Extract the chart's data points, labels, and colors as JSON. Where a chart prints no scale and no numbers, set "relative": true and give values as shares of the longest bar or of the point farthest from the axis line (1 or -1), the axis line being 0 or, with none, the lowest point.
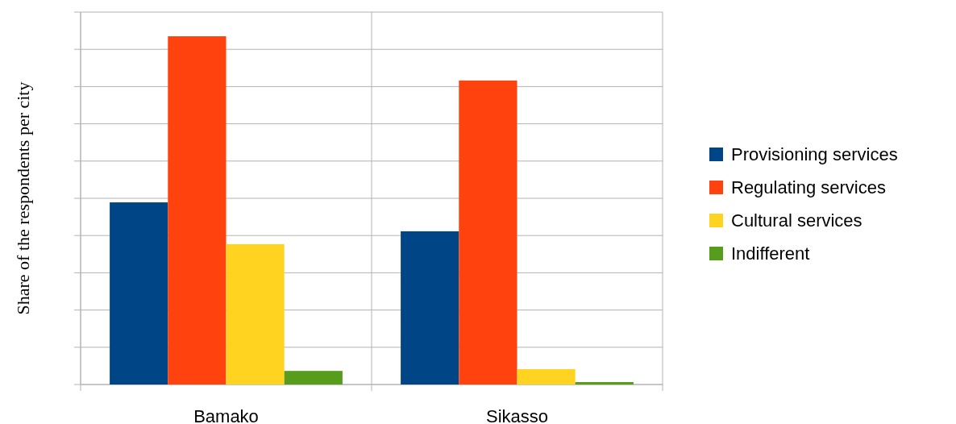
{
  "chart_data": {
    "type": "bar",
    "ylabel": "Share of the respondents per city",
    "categories": [
      "Bamako",
      "Sikasso"
    ],
    "relative": true,
    "grid": true,
    "legend": "right",
    "series": [
      {
        "name": "Provisioning services",
        "color": "#004586",
        "values": [
          0.523,
          0.44
        ]
      },
      {
        "name": "Regulating services",
        "color": "#ff420e",
        "values": [
          1,
          0.873
        ]
      },
      {
        "name": "Cultural services",
        "color": "#ffd320",
        "values": [
          0.403,
          0.044
        ]
      },
      {
        "name": "Indifferent",
        "color": "#579d1c",
        "values": [
          0.039,
          0.007
        ]
      }
    ]
  }
}
